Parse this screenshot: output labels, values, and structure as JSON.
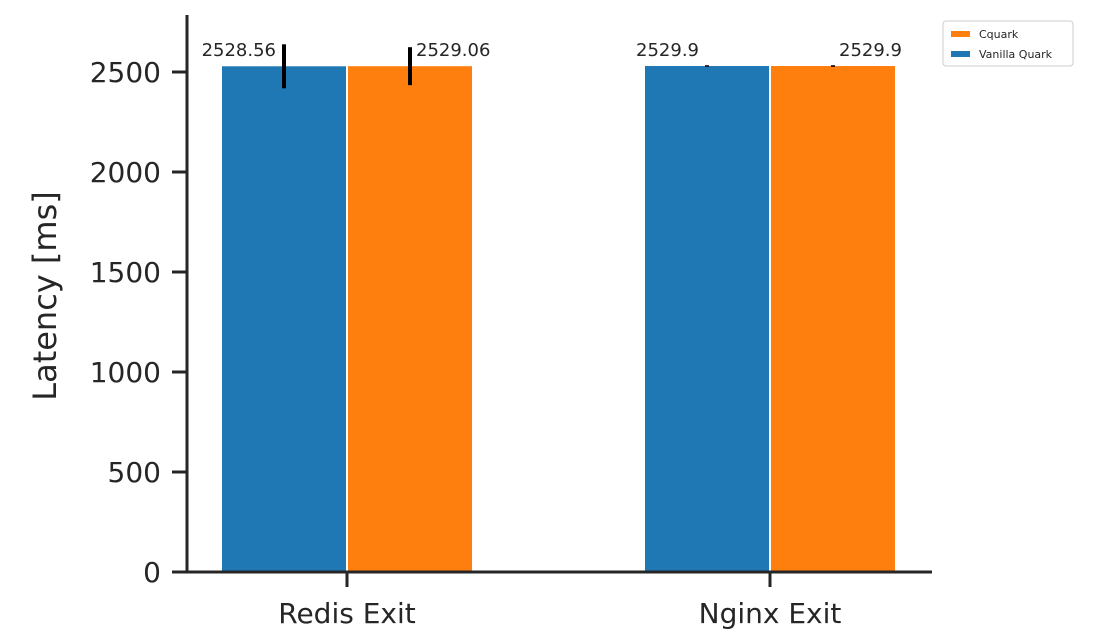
{
  "chart_data": {
    "type": "bar",
    "title": "",
    "xlabel": "",
    "ylabel": "Latency [ms]",
    "categories": [
      "Redis Exit",
      "Nginx Exit"
    ],
    "series": [
      {
        "name": "Vanilla Quark",
        "color": "#1f77b4",
        "values": [
          2528.56,
          2529.9
        ],
        "errors": [
          110,
          4
        ],
        "value_labels": [
          "2528.56",
          "2529.9"
        ]
      },
      {
        "name": "Cquark",
        "color": "#ff7f0e",
        "values": [
          2529.06,
          2529.9
        ],
        "errors": [
          95,
          4
        ],
        "value_labels": [
          "2529.06",
          "2529.9"
        ]
      }
    ],
    "ylim": [
      0,
      2780
    ],
    "yticks": [
      0,
      500,
      1000,
      1500,
      2000,
      2500
    ],
    "ytick_labels": [
      "0",
      "500",
      "1000",
      "1500",
      "2000",
      "2500"
    ],
    "legend": {
      "placement": "upper right, outside plot",
      "order": [
        "Cquark",
        "Vanilla Quark"
      ]
    },
    "grid": false
  }
}
